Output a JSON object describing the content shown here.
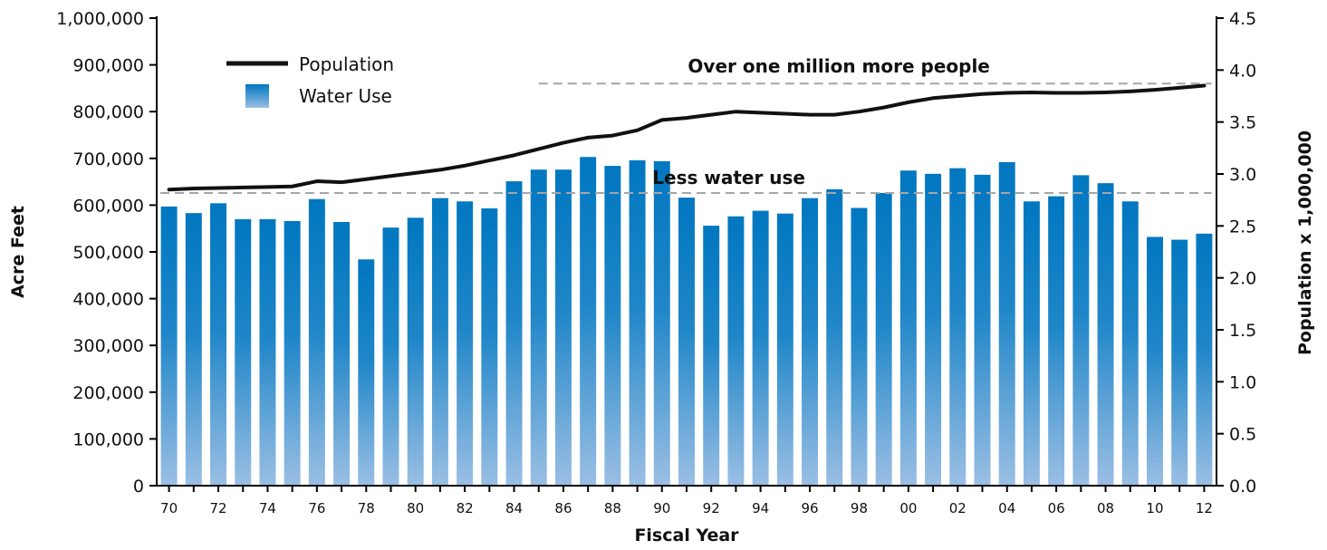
{
  "chart_data": {
    "type": "bar",
    "xlabel": "Fiscal Year",
    "ylabel": "Acre Feet",
    "y2label": "Population x 1,000,000",
    "ylim": [
      0,
      1000000
    ],
    "y2lim": [
      0,
      4.5
    ],
    "y_ticks": [
      "0",
      "100,000",
      "200,000",
      "300,000",
      "400,000",
      "500,000",
      "600,000",
      "700,000",
      "800,000",
      "900,000",
      "1,000,000"
    ],
    "y2_ticks": [
      "0.0",
      "0.5",
      "1.0",
      "1.5",
      "2.0",
      "2.5",
      "3.0",
      "3.5",
      "4.0",
      "4.5"
    ],
    "categories": [
      "70",
      "71",
      "72",
      "73",
      "74",
      "75",
      "76",
      "77",
      "78",
      "79",
      "80",
      "81",
      "82",
      "83",
      "84",
      "85",
      "86",
      "87",
      "88",
      "89",
      "90",
      "91",
      "92",
      "93",
      "94",
      "95",
      "96",
      "97",
      "98",
      "99",
      "00",
      "01",
      "02",
      "03",
      "04",
      "05",
      "06",
      "07",
      "08",
      "09",
      "10",
      "11",
      "12"
    ],
    "x_tick_labels": [
      "70",
      "72",
      "74",
      "76",
      "78",
      "80",
      "82",
      "84",
      "86",
      "88",
      "90",
      "92",
      "94",
      "96",
      "98",
      "00",
      "02",
      "04",
      "06",
      "08",
      "10",
      "12"
    ],
    "legend": {
      "placement": "top-left",
      "population_label": "Population",
      "water_label": "Water Use"
    },
    "series": [
      {
        "name": "Water Use",
        "axis": "left",
        "kind": "bar",
        "color_top": "#0077c0",
        "color_bottom": "#9bbfe4",
        "values": [
          597000,
          583000,
          604000,
          570000,
          570000,
          566000,
          613000,
          564000,
          484000,
          552000,
          573000,
          615000,
          608000,
          593000,
          651000,
          676000,
          676000,
          703000,
          684000,
          696000,
          694000,
          616000,
          556000,
          576000,
          588000,
          582000,
          615000,
          634000,
          594000,
          626000,
          674000,
          667000,
          679000,
          665000,
          692000,
          608000,
          619000,
          664000,
          647000,
          608000,
          532000,
          526000,
          539000
        ]
      },
      {
        "name": "Population",
        "axis": "right",
        "kind": "line",
        "color": "#111111",
        "values": [
          2.85,
          2.86,
          2.865,
          2.87,
          2.875,
          2.88,
          2.93,
          2.92,
          2.95,
          2.98,
          3.01,
          3.04,
          3.08,
          3.13,
          3.18,
          3.24,
          3.3,
          3.35,
          3.37,
          3.42,
          3.52,
          3.54,
          3.57,
          3.6,
          3.59,
          3.58,
          3.57,
          3.57,
          3.6,
          3.64,
          3.69,
          3.73,
          3.75,
          3.77,
          3.78,
          3.785,
          3.78,
          3.78,
          3.785,
          3.795,
          3.81,
          3.83,
          3.85
        ]
      }
    ],
    "annotations": [
      {
        "text": "Over one million more people",
        "ref_axis": "right",
        "ref_value": 3.87,
        "from_category": "85",
        "to_category": "12"
      },
      {
        "text": "Less water use",
        "ref_axis": "left",
        "ref_value": 626000,
        "from_category": "70",
        "to_category": "12"
      }
    ]
  }
}
